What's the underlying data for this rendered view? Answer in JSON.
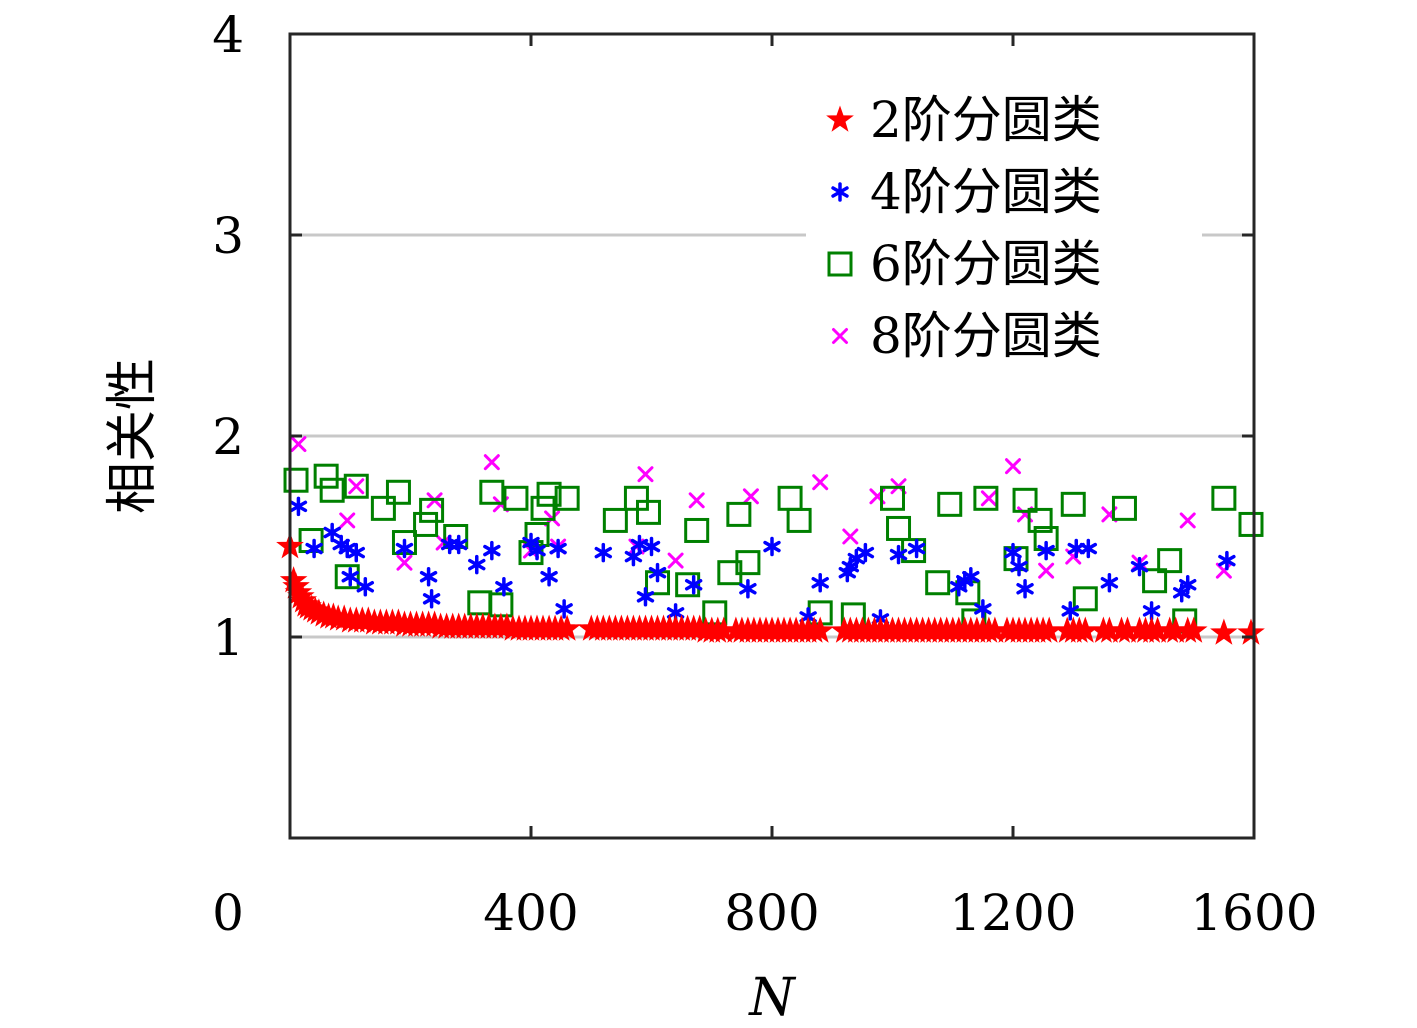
{
  "chart_data": {
    "type": "scatter",
    "title": "",
    "xlabel": "N",
    "ylabel": "相关性",
    "xlim": [
      0,
      1600
    ],
    "ylim": [
      0,
      4
    ],
    "x_ticks": [
      "0",
      "400",
      "800",
      "1200",
      "1600"
    ],
    "y_ticks": [
      "1",
      "2",
      "3",
      "4"
    ],
    "grid": "horizontal",
    "legend_position": "top-right",
    "series": [
      {
        "name": "2阶分圆类",
        "marker": "star",
        "color": "#ff0000",
        "points": [
          [
            0,
            1.45
          ],
          [
            6,
            1.28
          ],
          [
            10,
            1.25
          ],
          [
            14,
            1.22
          ],
          [
            18,
            1.2
          ],
          [
            22,
            1.18
          ],
          [
            26,
            1.16
          ],
          [
            30,
            1.15
          ],
          [
            36,
            1.14
          ],
          [
            42,
            1.13
          ],
          [
            48,
            1.12
          ],
          [
            56,
            1.11
          ],
          [
            64,
            1.1
          ],
          [
            72,
            1.1
          ],
          [
            80,
            1.09
          ],
          [
            90,
            1.09
          ],
          [
            100,
            1.08
          ],
          [
            110,
            1.08
          ],
          [
            120,
            1.08
          ],
          [
            130,
            1.08
          ],
          [
            140,
            1.07
          ],
          [
            150,
            1.07
          ],
          [
            160,
            1.07
          ],
          [
            170,
            1.07
          ],
          [
            180,
            1.07
          ],
          [
            190,
            1.06
          ],
          [
            200,
            1.06
          ],
          [
            210,
            1.06
          ],
          [
            220,
            1.06
          ],
          [
            230,
            1.06
          ],
          [
            240,
            1.06
          ],
          [
            250,
            1.05
          ],
          [
            260,
            1.05
          ],
          [
            270,
            1.05
          ],
          [
            280,
            1.05
          ],
          [
            290,
            1.05
          ],
          [
            300,
            1.05
          ],
          [
            310,
            1.05
          ],
          [
            320,
            1.05
          ],
          [
            330,
            1.05
          ],
          [
            340,
            1.05
          ],
          [
            350,
            1.05
          ],
          [
            360,
            1.05
          ],
          [
            370,
            1.04
          ],
          [
            380,
            1.04
          ],
          [
            390,
            1.04
          ],
          [
            400,
            1.04
          ],
          [
            410,
            1.04
          ],
          [
            420,
            1.04
          ],
          [
            430,
            1.04
          ],
          [
            440,
            1.04
          ],
          [
            450,
            1.04
          ],
          [
            460,
            1.04
          ],
          [
            500,
            1.04
          ],
          [
            510,
            1.04
          ],
          [
            520,
            1.04
          ],
          [
            530,
            1.04
          ],
          [
            540,
            1.04
          ],
          [
            550,
            1.04
          ],
          [
            560,
            1.04
          ],
          [
            570,
            1.04
          ],
          [
            580,
            1.04
          ],
          [
            590,
            1.04
          ],
          [
            600,
            1.04
          ],
          [
            610,
            1.04
          ],
          [
            620,
            1.04
          ],
          [
            630,
            1.04
          ],
          [
            640,
            1.04
          ],
          [
            650,
            1.04
          ],
          [
            660,
            1.04
          ],
          [
            670,
            1.04
          ],
          [
            680,
            1.04
          ],
          [
            690,
            1.03
          ],
          [
            700,
            1.03
          ],
          [
            710,
            1.03
          ],
          [
            720,
            1.03
          ],
          [
            740,
            1.03
          ],
          [
            750,
            1.03
          ],
          [
            760,
            1.03
          ],
          [
            770,
            1.03
          ],
          [
            780,
            1.03
          ],
          [
            790,
            1.03
          ],
          [
            800,
            1.03
          ],
          [
            810,
            1.03
          ],
          [
            820,
            1.03
          ],
          [
            830,
            1.03
          ],
          [
            840,
            1.03
          ],
          [
            850,
            1.03
          ],
          [
            860,
            1.03
          ],
          [
            870,
            1.03
          ],
          [
            880,
            1.03
          ],
          [
            920,
            1.03
          ],
          [
            930,
            1.03
          ],
          [
            940,
            1.03
          ],
          [
            950,
            1.03
          ],
          [
            960,
            1.03
          ],
          [
            970,
            1.03
          ],
          [
            980,
            1.03
          ],
          [
            990,
            1.03
          ],
          [
            1000,
            1.03
          ],
          [
            1010,
            1.03
          ],
          [
            1020,
            1.03
          ],
          [
            1030,
            1.03
          ],
          [
            1040,
            1.03
          ],
          [
            1050,
            1.03
          ],
          [
            1060,
            1.03
          ],
          [
            1070,
            1.03
          ],
          [
            1080,
            1.03
          ],
          [
            1090,
            1.03
          ],
          [
            1100,
            1.03
          ],
          [
            1110,
            1.03
          ],
          [
            1120,
            1.03
          ],
          [
            1130,
            1.03
          ],
          [
            1140,
            1.03
          ],
          [
            1150,
            1.03
          ],
          [
            1160,
            1.03
          ],
          [
            1170,
            1.03
          ],
          [
            1190,
            1.03
          ],
          [
            1200,
            1.03
          ],
          [
            1210,
            1.03
          ],
          [
            1220,
            1.03
          ],
          [
            1230,
            1.03
          ],
          [
            1240,
            1.03
          ],
          [
            1250,
            1.03
          ],
          [
            1260,
            1.03
          ],
          [
            1290,
            1.03
          ],
          [
            1300,
            1.03
          ],
          [
            1310,
            1.03
          ],
          [
            1320,
            1.03
          ],
          [
            1350,
            1.03
          ],
          [
            1360,
            1.03
          ],
          [
            1380,
            1.03
          ],
          [
            1390,
            1.03
          ],
          [
            1410,
            1.03
          ],
          [
            1420,
            1.03
          ],
          [
            1430,
            1.03
          ],
          [
            1440,
            1.03
          ],
          [
            1460,
            1.03
          ],
          [
            1470,
            1.03
          ],
          [
            1490,
            1.03
          ],
          [
            1500,
            1.03
          ],
          [
            1550,
            1.02
          ],
          [
            1595,
            1.02
          ]
        ]
      },
      {
        "name": "4阶分圆类",
        "marker": "asterisk",
        "color": "#0000ff",
        "points": [
          [
            14,
            1.65
          ],
          [
            40,
            1.44
          ],
          [
            70,
            1.52
          ],
          [
            85,
            1.46
          ],
          [
            95,
            1.44
          ],
          [
            100,
            1.3
          ],
          [
            110,
            1.42
          ],
          [
            125,
            1.25
          ],
          [
            190,
            1.44
          ],
          [
            230,
            1.3
          ],
          [
            235,
            1.19
          ],
          [
            265,
            1.46
          ],
          [
            280,
            1.46
          ],
          [
            310,
            1.36
          ],
          [
            335,
            1.43
          ],
          [
            355,
            1.25
          ],
          [
            400,
            1.47
          ],
          [
            410,
            1.43
          ],
          [
            430,
            1.3
          ],
          [
            445,
            1.44
          ],
          [
            455,
            1.14
          ],
          [
            520,
            1.42
          ],
          [
            570,
            1.4
          ],
          [
            580,
            1.46
          ],
          [
            590,
            1.2
          ],
          [
            600,
            1.45
          ],
          [
            610,
            1.32
          ],
          [
            640,
            1.12
          ],
          [
            670,
            1.26
          ],
          [
            760,
            1.24
          ],
          [
            800,
            1.45
          ],
          [
            860,
            1.1
          ],
          [
            880,
            1.27
          ],
          [
            925,
            1.32
          ],
          [
            930,
            1.35
          ],
          [
            940,
            1.39
          ],
          [
            955,
            1.42
          ],
          [
            980,
            1.09
          ],
          [
            1010,
            1.41
          ],
          [
            1040,
            1.44
          ],
          [
            1110,
            1.25
          ],
          [
            1120,
            1.28
          ],
          [
            1130,
            1.3
          ],
          [
            1150,
            1.14
          ],
          [
            1200,
            1.42
          ],
          [
            1210,
            1.35
          ],
          [
            1220,
            1.24
          ],
          [
            1255,
            1.43
          ],
          [
            1295,
            1.13
          ],
          [
            1305,
            1.44
          ],
          [
            1325,
            1.44
          ],
          [
            1360,
            1.27
          ],
          [
            1410,
            1.35
          ],
          [
            1430,
            1.13
          ],
          [
            1480,
            1.22
          ],
          [
            1490,
            1.26
          ],
          [
            1555,
            1.38
          ]
        ]
      },
      {
        "name": "6阶分圆类",
        "marker": "square",
        "color": "#008000",
        "points": [
          [
            10,
            1.78
          ],
          [
            35,
            1.48
          ],
          [
            60,
            1.8
          ],
          [
            70,
            1.73
          ],
          [
            95,
            1.3
          ],
          [
            110,
            1.75
          ],
          [
            155,
            1.64
          ],
          [
            180,
            1.72
          ],
          [
            190,
            1.47
          ],
          [
            225,
            1.56
          ],
          [
            235,
            1.63
          ],
          [
            275,
            1.5
          ],
          [
            315,
            1.17
          ],
          [
            335,
            1.72
          ],
          [
            350,
            1.16
          ],
          [
            375,
            1.69
          ],
          [
            400,
            1.42
          ],
          [
            410,
            1.51
          ],
          [
            420,
            1.64
          ],
          [
            430,
            1.71
          ],
          [
            460,
            1.69
          ],
          [
            540,
            1.58
          ],
          [
            575,
            1.69
          ],
          [
            595,
            1.62
          ],
          [
            610,
            1.27
          ],
          [
            660,
            1.26
          ],
          [
            675,
            1.53
          ],
          [
            705,
            1.12
          ],
          [
            730,
            1.32
          ],
          [
            745,
            1.61
          ],
          [
            760,
            1.37
          ],
          [
            830,
            1.69
          ],
          [
            845,
            1.58
          ],
          [
            880,
            1.12
          ],
          [
            935,
            1.11
          ],
          [
            1000,
            1.69
          ],
          [
            1010,
            1.54
          ],
          [
            1035,
            1.43
          ],
          [
            1075,
            1.27
          ],
          [
            1095,
            1.66
          ],
          [
            1125,
            1.22
          ],
          [
            1135,
            1.08
          ],
          [
            1155,
            1.69
          ],
          [
            1205,
            1.39
          ],
          [
            1220,
            1.68
          ],
          [
            1245,
            1.58
          ],
          [
            1255,
            1.49
          ],
          [
            1300,
            1.66
          ],
          [
            1320,
            1.19
          ],
          [
            1385,
            1.64
          ],
          [
            1435,
            1.28
          ],
          [
            1460,
            1.38
          ],
          [
            1485,
            1.08
          ],
          [
            1550,
            1.69
          ],
          [
            1595,
            1.56
          ]
        ]
      },
      {
        "name": "8阶分圆类",
        "marker": "cross",
        "color": "#ff00ff",
        "points": [
          [
            14,
            1.96
          ],
          [
            95,
            1.58
          ],
          [
            110,
            1.75
          ],
          [
            190,
            1.37
          ],
          [
            240,
            1.68
          ],
          [
            255,
            1.47
          ],
          [
            335,
            1.87
          ],
          [
            350,
            1.66
          ],
          [
            400,
            1.43
          ],
          [
            435,
            1.59
          ],
          [
            445,
            1.45
          ],
          [
            575,
            1.45
          ],
          [
            590,
            1.81
          ],
          [
            640,
            1.38
          ],
          [
            675,
            1.68
          ],
          [
            765,
            1.7
          ],
          [
            880,
            1.77
          ],
          [
            930,
            1.5
          ],
          [
            975,
            1.7
          ],
          [
            1010,
            1.75
          ],
          [
            1160,
            1.69
          ],
          [
            1200,
            1.85
          ],
          [
            1220,
            1.61
          ],
          [
            1255,
            1.33
          ],
          [
            1300,
            1.4
          ],
          [
            1360,
            1.61
          ],
          [
            1410,
            1.37
          ],
          [
            1490,
            1.58
          ],
          [
            1550,
            1.33
          ]
        ]
      }
    ]
  }
}
